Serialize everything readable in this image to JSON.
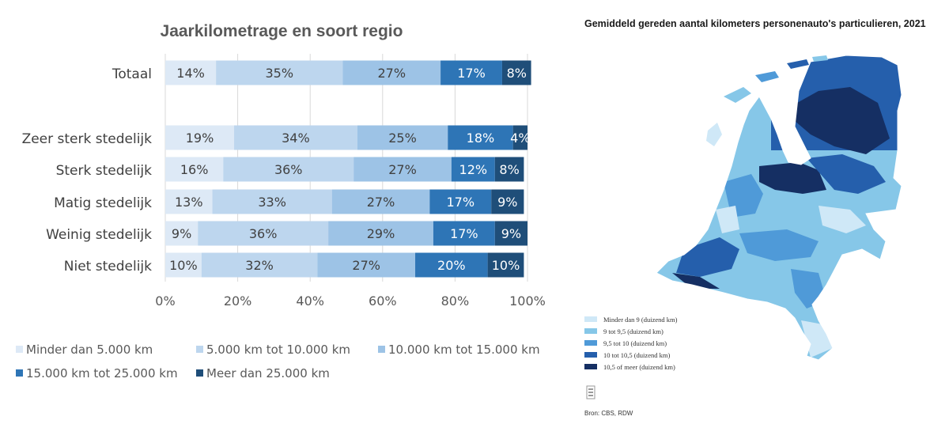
{
  "chart_data": {
    "type": "bar",
    "orientation": "horizontal-stacked-100",
    "title": "Jaarkilometrage en soort regio",
    "categories": [
      "Totaal",
      "Zeer sterk stedelijk",
      "Sterk stedelijk",
      "Matig stedelijk",
      "Weinig stedelijk",
      "Niet stedelijk"
    ],
    "series": [
      {
        "name": "Minder dan 5.000 km",
        "color": "#dde9f6",
        "values": [
          14,
          19,
          16,
          13,
          9,
          10
        ]
      },
      {
        "name": "5.000 km tot 10.000 km",
        "color": "#bdd6ee",
        "values": [
          35,
          34,
          36,
          33,
          36,
          32
        ]
      },
      {
        "name": "10.000 km tot 15.000 km",
        "color": "#9dc3e6",
        "values": [
          27,
          25,
          27,
          27,
          29,
          27
        ]
      },
      {
        "name": "15.000 km tot 25.000 km",
        "color": "#2e75b6",
        "values": [
          17,
          18,
          12,
          17,
          17,
          20
        ]
      },
      {
        "name": "Meer dan 25.000 km",
        "color": "#1f4e79",
        "values": [
          8,
          4,
          8,
          9,
          9,
          10
        ]
      }
    ],
    "xlim": [
      0,
      100
    ],
    "xticks": [
      "0%",
      "20%",
      "40%",
      "60%",
      "80%",
      "100%"
    ],
    "grid": true,
    "legend": "bottom"
  },
  "map_panel": {
    "title": "Gemiddeld gereden aantal kilometers personenauto's particulieren, 2021",
    "legend": [
      {
        "label": "Minder dan 9 (duizend km)",
        "color": "#cfe8f7"
      },
      {
        "label": "9 tot 9,5 (duizend km)",
        "color": "#86c7e8"
      },
      {
        "label": "9,5 tot 10 (duizend km)",
        "color": "#4f9ad8"
      },
      {
        "label": "10 tot 10,5 (duizend km)",
        "color": "#255fac"
      },
      {
        "label": "10,5 of meer (duizend km)",
        "color": "#152f63"
      }
    ],
    "source": "Bron: CBS, RDW"
  }
}
